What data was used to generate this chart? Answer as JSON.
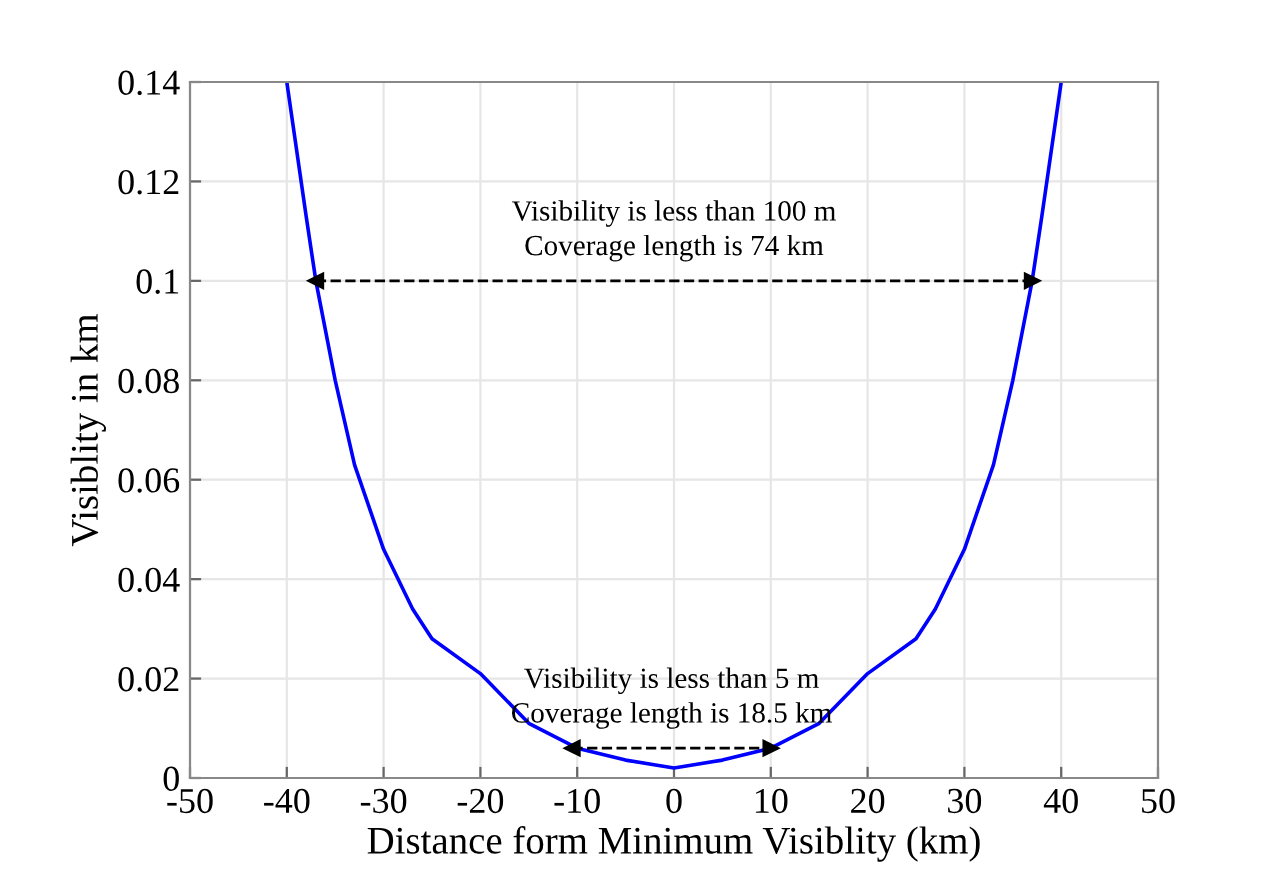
{
  "chart_data": {
    "type": "line",
    "xlabel": "Distance form Minimum Visiblity (km)",
    "ylabel": "Visiblity in km",
    "series": [
      {
        "color": "#0000ff",
        "line_style": "solid",
        "x": [
          -40,
          -38,
          -37,
          -35,
          -33,
          -30,
          -27,
          -25,
          -20,
          -15,
          -10,
          -5,
          0,
          5,
          10,
          15,
          20,
          25,
          27,
          30,
          33,
          35,
          37,
          38,
          40
        ],
        "values": [
          0.14,
          0.113,
          0.1,
          0.08,
          0.063,
          0.046,
          0.034,
          0.028,
          0.021,
          0.011,
          0.006,
          0.0036,
          0.002,
          0.0036,
          0.006,
          0.011,
          0.021,
          0.028,
          0.034,
          0.046,
          0.063,
          0.08,
          0.1,
          0.113,
          0.14
        ]
      },
      {
        "color": "#000000",
        "line_style": "dashed",
        "marker": "triangle",
        "x": [
          -37,
          37
        ],
        "values": [
          0.1,
          0.1
        ]
      },
      {
        "color": "#000000",
        "line_style": "dashed",
        "marker": "triangle",
        "x": [
          -10.5,
          10
        ],
        "values": [
          0.006,
          0.006
        ]
      }
    ],
    "xlim": [
      -50,
      50
    ],
    "xticks": [
      -50,
      -40,
      -30,
      -20,
      -10,
      0,
      10,
      20,
      30,
      40,
      50
    ],
    "ylim": [
      0,
      0.14
    ],
    "yticks": [
      0,
      0.02,
      0.04,
      0.06,
      0.08,
      0.1,
      0.12,
      0.14
    ],
    "grid": true,
    "marker": "none",
    "annotations": [
      "Visibility is less than 100 m\nCoverage length is 74 km",
      "Visibility is less than 5 m\nCoverage length is 18.5 km"
    ]
  }
}
